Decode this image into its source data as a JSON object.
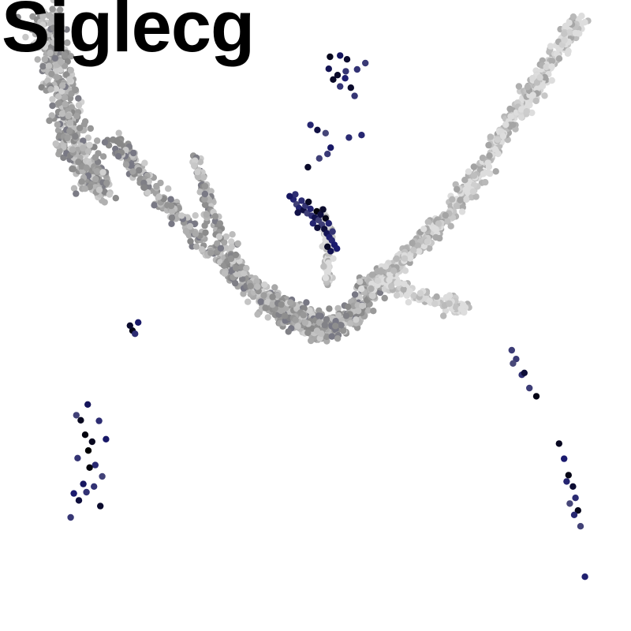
{
  "chart_data": {
    "type": "scatter",
    "title": "Siglecg",
    "xlabel": "",
    "ylabel": "",
    "axes_visible": false,
    "grid": false,
    "legend": "none",
    "color_scale": {
      "low": "#dddddd",
      "mid": "#888888",
      "high_blue": "#1a1a6e",
      "max": "#000000"
    },
    "background_clusters": [
      {
        "name": "left-upper-arc",
        "level": 0.35,
        "path": [
          [
            18,
            78
          ],
          [
            21,
            74
          ],
          [
            24,
            70
          ],
          [
            28,
            66
          ],
          [
            32,
            62
          ],
          [
            36,
            58
          ],
          [
            40,
            54
          ],
          [
            44,
            51
          ],
          [
            48,
            49
          ]
        ],
        "spread": 1.3,
        "count": 420
      },
      {
        "name": "left-lower-leg",
        "level": 0.3,
        "path": [
          [
            7,
            97
          ],
          [
            8,
            93
          ],
          [
            9,
            89
          ],
          [
            10,
            85
          ],
          [
            11,
            81
          ],
          [
            12,
            77
          ],
          [
            14,
            73
          ],
          [
            16,
            70
          ]
        ],
        "spread": 2.2,
        "count": 520
      },
      {
        "name": "left-inner-arc",
        "level": 0.3,
        "path": [
          [
            31,
            75
          ],
          [
            32,
            71
          ],
          [
            33,
            67
          ],
          [
            35,
            63
          ],
          [
            37,
            59
          ],
          [
            40,
            55
          ],
          [
            44,
            52
          ]
        ],
        "spread": 0.9,
        "count": 160
      },
      {
        "name": "top-peak",
        "level": 0.32,
        "path": [
          [
            44,
            52
          ],
          [
            47,
            50
          ],
          [
            50,
            48
          ],
          [
            53,
            48
          ],
          [
            56,
            50
          ],
          [
            58,
            53
          ],
          [
            61,
            56
          ]
        ],
        "spread": 1.8,
        "count": 380
      },
      {
        "name": "right-arm-upper",
        "level": 0.12,
        "path": [
          [
            58,
            54
          ],
          [
            62,
            57
          ],
          [
            65,
            60
          ],
          [
            68,
            63
          ],
          [
            71,
            66
          ],
          [
            74,
            70
          ],
          [
            77,
            74
          ]
        ],
        "spread": 1.2,
        "count": 300
      },
      {
        "name": "right-arm-lower",
        "level": 0.1,
        "path": [
          [
            77,
            74
          ],
          [
            80,
            79
          ],
          [
            83,
            84
          ],
          [
            86,
            88
          ],
          [
            89,
            93
          ],
          [
            92,
            97
          ]
        ],
        "spread": 1.2,
        "count": 320
      },
      {
        "name": "right-branch",
        "level": 0.05,
        "path": [
          [
            62,
            55
          ],
          [
            66,
            53
          ],
          [
            70,
            52
          ],
          [
            74,
            51
          ]
        ],
        "spread": 1.0,
        "count": 110
      },
      {
        "name": "central-stem",
        "level": 0.08,
        "path": [
          [
            52,
            55
          ],
          [
            52,
            59
          ],
          [
            52,
            63
          ],
          [
            51,
            66
          ]
        ],
        "spread": 0.6,
        "count": 90
      }
    ],
    "highlight_points": [
      [
        46.5,
        68.4
      ],
      [
        47.0,
        67.6
      ],
      [
        47.4,
        67.0
      ],
      [
        48.1,
        66.7
      ],
      [
        48.7,
        66.2
      ],
      [
        49.4,
        65.8
      ],
      [
        49.9,
        65.5
      ],
      [
        50.5,
        65.1
      ],
      [
        51.0,
        64.4
      ],
      [
        51.4,
        63.7
      ],
      [
        51.8,
        63.0
      ],
      [
        52.2,
        62.4
      ],
      [
        52.6,
        61.9
      ],
      [
        53.0,
        61.2
      ],
      [
        53.4,
        60.6
      ],
      [
        46.8,
        69.2
      ],
      [
        47.8,
        68.2
      ],
      [
        48.4,
        67.4
      ],
      [
        49.2,
        66.9
      ],
      [
        50.2,
        66.5
      ],
      [
        50.8,
        66.0
      ],
      [
        51.6,
        65.4
      ],
      [
        52.1,
        64.6
      ],
      [
        47.2,
        66.3
      ],
      [
        45.9,
        68.9
      ],
      [
        49.6,
        64.6
      ],
      [
        50.3,
        63.9
      ],
      [
        52.7,
        63.3
      ],
      [
        48.9,
        68.0
      ],
      [
        51.2,
        66.8
      ],
      [
        52.4,
        60.2
      ],
      [
        51.9,
        60.9
      ],
      [
        53.9,
        91.2
      ],
      [
        55.0,
        90.6
      ],
      [
        52.3,
        91.0
      ],
      [
        52.8,
        87.4
      ],
      [
        53.5,
        88.1
      ],
      [
        54.7,
        87.6
      ],
      [
        57.9,
        90.0
      ],
      [
        56.6,
        89.0
      ],
      [
        52.1,
        89.1
      ],
      [
        53.9,
        86.3
      ],
      [
        56.2,
        84.8
      ],
      [
        55.6,
        86.1
      ],
      [
        54.8,
        88.7
      ],
      [
        49.2,
        80.2
      ],
      [
        50.3,
        79.4
      ],
      [
        51.6,
        78.9
      ],
      [
        57.3,
        78.6
      ],
      [
        55.3,
        78.2
      ],
      [
        52.4,
        76.6
      ],
      [
        51.9,
        75.6
      ],
      [
        50.6,
        74.9
      ],
      [
        48.8,
        73.5
      ],
      [
        14.0,
        28.6
      ],
      [
        13.5,
        31.1
      ],
      [
        12.8,
        33.4
      ],
      [
        13.9,
        35.9
      ],
      [
        14.6,
        30.0
      ],
      [
        12.1,
        34.2
      ],
      [
        15.1,
        26.3
      ],
      [
        16.2,
        24.5
      ],
      [
        13.2,
        23.3
      ],
      [
        11.7,
        21.8
      ],
      [
        14.9,
        22.9
      ],
      [
        12.5,
        20.7
      ],
      [
        16.8,
        30.4
      ],
      [
        15.7,
        33.3
      ],
      [
        12.3,
        27.4
      ],
      [
        14.2,
        25.9
      ],
      [
        13.7,
        22.0
      ],
      [
        11.2,
        18.0
      ],
      [
        15.9,
        19.8
      ],
      [
        21.0,
        47.6
      ],
      [
        20.6,
        48.4
      ],
      [
        21.4,
        47.1
      ],
      [
        21.9,
        48.9
      ],
      [
        81.1,
        44.5
      ],
      [
        81.8,
        43.1
      ],
      [
        82.7,
        40.6
      ],
      [
        83.9,
        38.5
      ],
      [
        85.0,
        37.2
      ],
      [
        88.6,
        29.7
      ],
      [
        89.4,
        27.3
      ],
      [
        90.1,
        24.7
      ],
      [
        90.8,
        22.9
      ],
      [
        91.2,
        21.1
      ],
      [
        91.6,
        19.1
      ],
      [
        92.0,
        16.6
      ],
      [
        92.7,
        8.6
      ],
      [
        89.8,
        23.7
      ],
      [
        90.3,
        20.2
      ],
      [
        91.0,
        18.4
      ],
      [
        81.3,
        42.4
      ],
      [
        83.1,
        40.9
      ]
    ],
    "xlim": [
      0,
      100
    ],
    "ylim": [
      0,
      100
    ]
  }
}
